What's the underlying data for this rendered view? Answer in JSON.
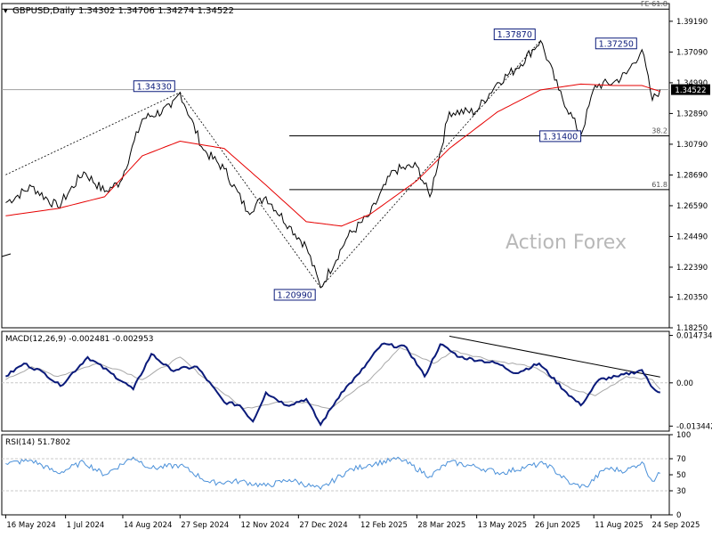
{
  "chart_data": {
    "type": "line",
    "symbol": "GBPUSD",
    "timeframe": "Daily",
    "ohlc": {
      "open": "1.34302",
      "high": "1.34706",
      "low": "1.34274",
      "close": "1.34522"
    },
    "watermark": "Action Forex",
    "price_panel": {
      "ylim": [
        1.1825,
        1.404
      ],
      "y_ticks": [
        "1.39190",
        "1.37090",
        "1.34990",
        "1.32890",
        "1.30790",
        "1.28690",
        "1.26590",
        "1.24490",
        "1.22390",
        "1.20350",
        "1.18250"
      ],
      "y_tick_values": [
        1.3919,
        1.3709,
        1.3499,
        1.3289,
        1.3079,
        1.2869,
        1.2659,
        1.2449,
        1.2239,
        1.2035,
        1.1825
      ],
      "current_price_label": "1.34522",
      "current_price": 1.34522,
      "pivot_labels": [
        {
          "text": "1.34330",
          "value": 1.3433,
          "date": "2024-09-27"
        },
        {
          "text": "1.20990",
          "value": 1.2099,
          "date": "2025-01-13"
        },
        {
          "text": "1.37870",
          "value": 1.3787,
          "date": "2025-07-01"
        },
        {
          "text": "1.37250",
          "value": 1.3725,
          "date": "2025-09-17"
        },
        {
          "text": "1.31400",
          "value": 1.314,
          "date": "2025-08-01"
        }
      ],
      "fib_levels": [
        {
          "label": "FE 61.8",
          "value": 1.4002
        },
        {
          "label": "38.2",
          "value": 1.3136
        },
        {
          "label": "61.8",
          "value": 1.2769
        }
      ],
      "price_series": {
        "name": "",
        "x": [
          "2024-05-16",
          "2024-06-05",
          "2024-06-25",
          "2024-07-15",
          "2024-07-31",
          "2024-08-12",
          "2024-08-29",
          "2024-09-20",
          "2024-09-27",
          "2024-10-15",
          "2024-10-31",
          "2024-11-18",
          "2024-12-02",
          "2024-12-20",
          "2025-01-02",
          "2025-01-13",
          "2025-02-03",
          "2025-02-20",
          "2025-03-10",
          "2025-03-28",
          "2025-04-07",
          "2025-04-22",
          "2025-05-12",
          "2025-05-29",
          "2025-06-13",
          "2025-07-01",
          "2025-07-15",
          "2025-08-01",
          "2025-08-12",
          "2025-08-26",
          "2025-09-05",
          "2025-09-17",
          "2025-09-25",
          "2025-10-01"
        ],
        "y": [
          1.268,
          1.279,
          1.265,
          1.289,
          1.2755,
          1.282,
          1.325,
          1.333,
          1.3433,
          1.304,
          1.291,
          1.262,
          1.272,
          1.252,
          1.238,
          1.2099,
          1.245,
          1.26,
          1.29,
          1.293,
          1.272,
          1.33,
          1.33,
          1.35,
          1.36,
          1.3787,
          1.345,
          1.314,
          1.348,
          1.35,
          1.356,
          1.3725,
          1.338,
          1.3452
        ]
      },
      "ma_series": {
        "name": "",
        "x": [
          "2024-05-16",
          "2024-06-25",
          "2024-07-31",
          "2024-08-29",
          "2024-09-27",
          "2024-10-31",
          "2024-12-02",
          "2025-01-02",
          "2025-01-29",
          "2025-02-20",
          "2025-03-28",
          "2025-04-22",
          "2025-05-29",
          "2025-07-01",
          "2025-08-01",
          "2025-08-26",
          "2025-09-17",
          "2025-10-01"
        ],
        "y": [
          1.259,
          1.264,
          1.272,
          1.3,
          1.31,
          1.305,
          1.28,
          1.255,
          1.252,
          1.26,
          1.283,
          1.305,
          1.33,
          1.345,
          1.349,
          1.348,
          1.348,
          1.344
        ]
      },
      "trendlines": [
        {
          "from": {
            "date": "2024-05-16",
            "value": 1.287
          },
          "to": {
            "date": "2024-09-27",
            "value": 1.3433
          }
        },
        {
          "from": {
            "date": "2024-09-27",
            "value": 1.3433
          },
          "to": {
            "date": "2025-01-13",
            "value": 1.2099
          }
        },
        {
          "from": {
            "date": "2025-01-13",
            "value": 1.2099
          },
          "to": {
            "date": "2025-07-01",
            "value": 1.3787
          }
        }
      ]
    },
    "macd_panel": {
      "label": "MACD(12,26,9) -0.002481 -0.002953",
      "ylim": [
        -0.015,
        0.016
      ],
      "y_ticks": [
        "0.014734",
        "0.00",
        "-0.013442"
      ],
      "y_tick_values": [
        0.014734,
        0.0,
        -0.013442
      ],
      "current_label": "0.00",
      "main_series": {
        "name": "",
        "x": [
          "2024-05-16",
          "2024-05-30",
          "2024-06-15",
          "2024-06-27",
          "2024-07-18",
          "2024-08-05",
          "2024-08-22",
          "2024-09-05",
          "2024-09-20",
          "2024-10-10",
          "2024-10-31",
          "2024-11-12",
          "2024-11-22",
          "2024-12-02",
          "2024-12-18",
          "2025-01-02",
          "2025-01-13",
          "2025-01-29",
          "2025-02-12",
          "2025-03-01",
          "2025-03-20",
          "2025-04-03",
          "2025-04-15",
          "2025-04-30",
          "2025-05-15",
          "2025-05-29",
          "2025-06-12",
          "2025-06-30",
          "2025-07-21",
          "2025-08-01",
          "2025-08-15",
          "2025-08-30",
          "2025-09-17",
          "2025-09-24",
          "2025-10-01"
        ],
        "y": [
          0.002,
          0.006,
          0.003,
          -0.001,
          0.008,
          0.003,
          -0.002,
          0.009,
          0.004,
          0.005,
          -0.006,
          -0.007,
          -0.012,
          -0.003,
          -0.007,
          -0.005,
          -0.013,
          -0.003,
          0.003,
          0.012,
          0.011,
          0.002,
          0.012,
          0.008,
          0.007,
          0.006,
          0.003,
          0.006,
          -0.003,
          -0.007,
          0.001,
          0.002,
          0.004,
          -0.001,
          -0.003
        ]
      },
      "signal_series": {
        "name": "",
        "x": [
          "2024-05-16",
          "2024-06-05",
          "2024-06-25",
          "2024-07-25",
          "2024-08-12",
          "2024-08-29",
          "2024-09-27",
          "2024-10-20",
          "2024-11-15",
          "2024-12-10",
          "2025-01-02",
          "2025-01-20",
          "2025-02-20",
          "2025-03-15",
          "2025-04-10",
          "2025-04-25",
          "2025-05-25",
          "2025-06-25",
          "2025-07-25",
          "2025-08-12",
          "2025-09-05",
          "2025-09-25",
          "2025-10-01"
        ],
        "y": [
          0.001,
          0.005,
          0.002,
          0.006,
          0.004,
          0.001,
          0.008,
          0.0,
          -0.008,
          -0.006,
          -0.006,
          -0.008,
          0.001,
          0.011,
          0.006,
          0.01,
          0.007,
          0.005,
          -0.002,
          -0.004,
          0.002,
          0.001,
          -0.002
        ]
      },
      "trendline": {
        "from": {
          "date": "2025-04-22",
          "value": 0.0145
        },
        "to": {
          "date": "2025-10-01",
          "value": 0.0018
        }
      }
    },
    "rsi_panel": {
      "label": "RSI(14) 51.7802",
      "ylim": [
        0,
        100
      ],
      "y_ticks": [
        "100",
        "70",
        "50",
        "30",
        "0"
      ],
      "y_tick_values": [
        100,
        70,
        50,
        30,
        0
      ],
      "current_value": 51.7802,
      "series": {
        "name": "",
        "x": [
          "2024-05-16",
          "2024-06-05",
          "2024-06-25",
          "2024-07-15",
          "2024-07-31",
          "2024-08-22",
          "2024-09-05",
          "2024-09-27",
          "2024-10-20",
          "2024-11-12",
          "2024-12-02",
          "2024-12-20",
          "2025-01-13",
          "2025-02-03",
          "2025-02-20",
          "2025-03-15",
          "2025-04-07",
          "2025-04-22",
          "2025-05-12",
          "2025-06-01",
          "2025-06-20",
          "2025-07-05",
          "2025-07-25",
          "2025-08-05",
          "2025-08-20",
          "2025-09-05",
          "2025-09-17",
          "2025-09-25",
          "2025-10-01"
        ],
        "y": [
          64,
          68,
          52,
          66,
          50,
          72,
          58,
          62,
          40,
          42,
          36,
          44,
          32,
          55,
          63,
          70,
          48,
          66,
          60,
          52,
          60,
          64,
          38,
          35,
          58,
          55,
          66,
          42,
          51.78
        ]
      }
    },
    "x_axis": {
      "labels": [
        "16 May 2024",
        "1 Jul 2024",
        "14 Aug 2024",
        "27 Sep 2024",
        "12 Nov 2024",
        "27 Dec 2024",
        "12 Feb 2025",
        "28 Mar 2025",
        "13 May 2025",
        "26 Jun 2025",
        "11 Aug 2025",
        "24 Sep 2025"
      ],
      "label_dates": [
        "2024-05-16",
        "2024-07-01",
        "2024-08-14",
        "2024-09-27",
        "2024-11-12",
        "2024-12-27",
        "2025-02-12",
        "2025-03-28",
        "2025-05-13",
        "2025-06-26",
        "2025-08-11",
        "2025-09-24"
      ]
    },
    "colors": {
      "price_line": "#000000",
      "moving_average": "#e60000",
      "macd_main": "#0a1a7a",
      "macd_signal": "#a8a8a8",
      "rsi_line": "#4a90d9",
      "label_text": "#0a1a7a",
      "watermark": "#b8b8b8",
      "gridline": "#c8c8c8"
    }
  }
}
